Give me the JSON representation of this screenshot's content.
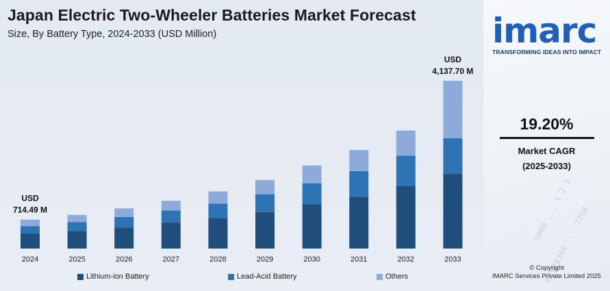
{
  "chart_data": {
    "type": "bar",
    "stacked": true,
    "title": "Japan Electric Two-Wheeler Batteries Market Forecast",
    "subtitle": "Size, By Battery Type, 2024-2033 (USD Million)",
    "categories": [
      "2024",
      "2025",
      "2026",
      "2027",
      "2028",
      "2029",
      "2030",
      "2031",
      "2032",
      "2033"
    ],
    "series": [
      {
        "name": "Lithium-ion Battery",
        "color": "#1f4e7d",
        "values": [
          370,
          430,
          520,
          640,
          750,
          900,
          1090,
          1280,
          1550,
          1840
        ]
      },
      {
        "name": "Lead-Acid Battery",
        "color": "#2e74b5",
        "values": [
          185,
          220,
          260,
          300,
          360,
          440,
          520,
          630,
          740,
          880
        ]
      },
      {
        "name": "Others",
        "color": "#8eaadb",
        "values": [
          159.49,
          180,
          210,
          240,
          300,
          350,
          440,
          520,
          620,
          1417.7
        ]
      }
    ],
    "annotations": [
      {
        "category": "2024",
        "line1": "USD",
        "line2": "714.49 M"
      },
      {
        "category": "2033",
        "line1": "USD",
        "line2": "4,137.70 M"
      }
    ],
    "ylim": [
      0,
      4137.7
    ],
    "grid": false,
    "legend_position": "bottom"
  },
  "side_panel": {
    "logo": "imarc",
    "tagline": "TRANSFORMING IDEAS INTO IMPACT",
    "cagr_value": "19.20%",
    "cagr_label": "Market CAGR",
    "cagr_period": "(2025-2033)",
    "copyright_line1": "© Copyright",
    "copyright_line2": "IMARC Services Private Limited 2025",
    "logo_color": "#1d5fbf"
  }
}
